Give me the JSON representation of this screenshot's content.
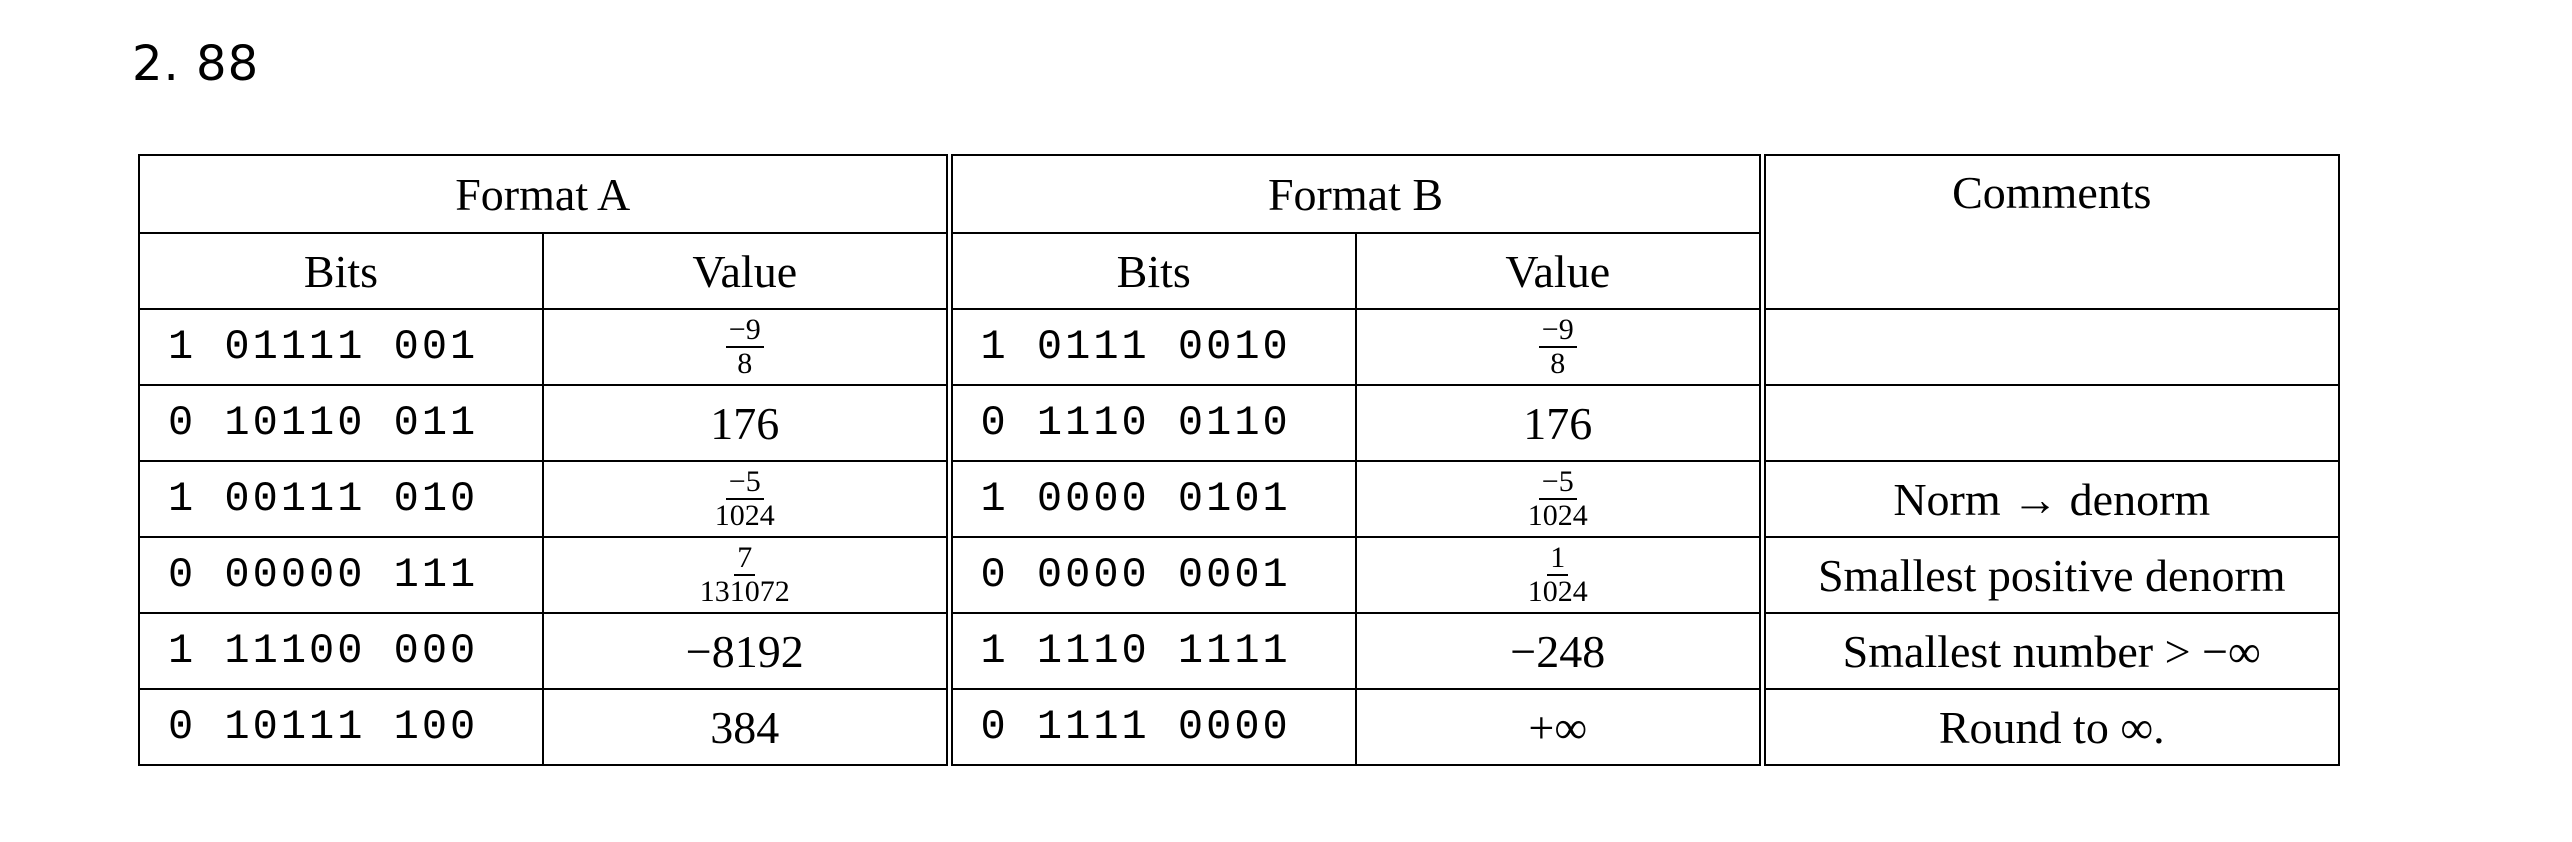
{
  "problem_number": "2. 88",
  "table": {
    "group_headers": {
      "format_a": "Format A",
      "format_b": "Format B",
      "comments": "Comments"
    },
    "sub_headers": {
      "a_bits": "Bits",
      "a_value": "Value",
      "b_bits": "Bits",
      "b_value": "Value"
    },
    "rows": [
      {
        "a_bits": "1 01111 001",
        "a_value": {
          "num": "−9",
          "den": "8"
        },
        "b_bits": "1 0111 0010",
        "b_value": {
          "num": "−9",
          "den": "8"
        },
        "comment": ""
      },
      {
        "a_bits": "0 10110 011",
        "a_value": "176",
        "b_bits": "0 1110 0110",
        "b_value": "176",
        "comment": ""
      },
      {
        "a_bits": "1 00111 010",
        "a_value": {
          "num": "−5",
          "den": "1024"
        },
        "b_bits": "1 0000 0101",
        "b_value": {
          "num": "−5",
          "den": "1024"
        },
        "comment": "Norm → denorm"
      },
      {
        "a_bits": "0 00000 111",
        "a_value": {
          "num": "7",
          "den": "131072"
        },
        "b_bits": "0 0000 0001",
        "b_value": {
          "num": "1",
          "den": "1024"
        },
        "comment": "Smallest positive denorm"
      },
      {
        "a_bits": "1 11100 000",
        "a_value": "−8192",
        "b_bits": "1 1110 1111",
        "b_value": "−248",
        "comment": "Smallest number >  −∞"
      },
      {
        "a_bits": "0 10111 100",
        "a_value": "384",
        "b_bits": "0 1111 0000",
        "b_value": "+∞",
        "comment": "Round to ∞."
      }
    ]
  }
}
